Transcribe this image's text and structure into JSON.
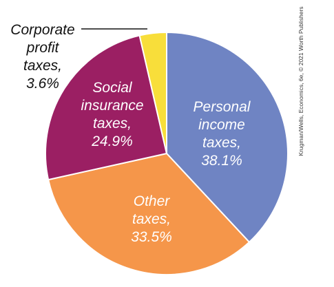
{
  "chart_data": {
    "type": "pie",
    "slices": [
      {
        "name": "Personal income taxes",
        "value": 38.1,
        "color": "#6f84c3",
        "label_lines": [
          "Personal",
          "income",
          "taxes,",
          "38.1%"
        ],
        "label_color": "#ffffff"
      },
      {
        "name": "Other taxes",
        "value": 33.5,
        "color": "#f5964a",
        "label_lines": [
          "Other",
          "taxes,",
          "33.5%"
        ],
        "label_color": "#ffffff"
      },
      {
        "name": "Social insurance taxes",
        "value": 24.9,
        "color": "#9b1f63",
        "label_lines": [
          "Social",
          "insurance",
          "taxes,",
          "24.9%"
        ],
        "label_color": "#ffffff"
      },
      {
        "name": "Corporate profit taxes",
        "value": 3.6,
        "color": "#f8de3a",
        "label_lines": [
          "Corporate",
          "profit",
          "taxes,",
          "3.6%"
        ],
        "label_color": "#111111"
      }
    ],
    "start_direction": "top",
    "direction": "clockwise"
  },
  "credit": "Krugman/Wells, Economics, 6e, © 2021 Worth Publishers"
}
